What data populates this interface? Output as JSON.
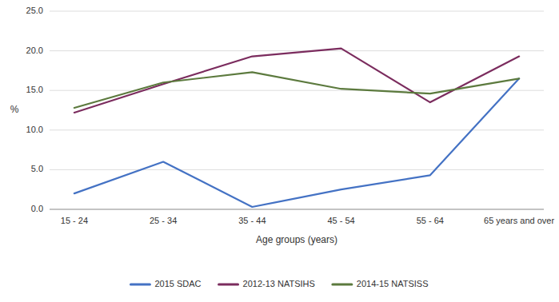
{
  "chart_data": {
    "type": "line",
    "categories": [
      "15 - 24",
      "25 - 34",
      "35 - 44",
      "45 - 54",
      "55 - 64",
      "65 years and over"
    ],
    "series": [
      {
        "name": "2015 SDAC",
        "color": "#4472C4",
        "values": [
          2.0,
          6.0,
          0.3,
          2.5,
          4.3,
          16.5
        ]
      },
      {
        "name": "2012-13 NATSIHS",
        "color": "#7B2C5E",
        "values": [
          12.2,
          15.8,
          19.3,
          20.3,
          13.5,
          19.3
        ]
      },
      {
        "name": "2014-15 NATSISS",
        "color": "#5C7A3E",
        "values": [
          12.8,
          16.0,
          17.3,
          15.2,
          14.6,
          16.5
        ]
      }
    ],
    "ylabel": "%",
    "xlabel": "Age groups (years)",
    "ylim": [
      0.0,
      25.0
    ],
    "yticks": [
      {
        "value": 0.0,
        "label": "0.0"
      },
      {
        "value": 5.0,
        "label": "5.0"
      },
      {
        "value": 10.0,
        "label": "10.0"
      },
      {
        "value": 15.0,
        "label": "15.0"
      },
      {
        "value": 20.0,
        "label": "20.0"
      },
      {
        "value": 25.0,
        "label": "25.0"
      }
    ],
    "grid": true,
    "legend": "bottom"
  }
}
